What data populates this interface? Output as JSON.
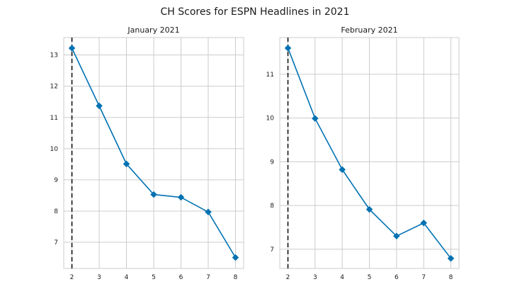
{
  "figure": {
    "title": "CH Scores for ESPN Headlines in 2021"
  },
  "chart_data": [
    {
      "type": "line",
      "title": "January 2021",
      "xlabel": "",
      "ylabel": "",
      "x": [
        2,
        3,
        4,
        5,
        6,
        7,
        8
      ],
      "values": [
        13.22,
        11.37,
        9.51,
        8.53,
        8.44,
        7.97,
        6.51
      ],
      "xticks": [
        2,
        3,
        4,
        5,
        6,
        7,
        8
      ],
      "yticks": [
        7,
        8,
        9,
        10,
        11,
        12,
        13
      ],
      "xlim": [
        1.7,
        8.3
      ],
      "ylim": [
        6.16,
        13.56
      ],
      "elbow_x": 2,
      "grid": true,
      "line_color": "#0072B2",
      "marker": "diamond"
    },
    {
      "type": "line",
      "title": "February 2021",
      "xlabel": "",
      "ylabel": "",
      "x": [
        2,
        3,
        4,
        5,
        6,
        7,
        8
      ],
      "values": [
        11.6,
        9.99,
        8.82,
        7.91,
        7.3,
        7.6,
        6.79
      ],
      "xticks": [
        2,
        3,
        4,
        5,
        6,
        7,
        8
      ],
      "yticks": [
        7,
        8,
        9,
        10,
        11
      ],
      "xlim": [
        1.7,
        8.3
      ],
      "ylim": [
        6.56,
        11.84
      ],
      "elbow_x": 2,
      "grid": true,
      "line_color": "#0072B2",
      "marker": "diamond"
    }
  ]
}
